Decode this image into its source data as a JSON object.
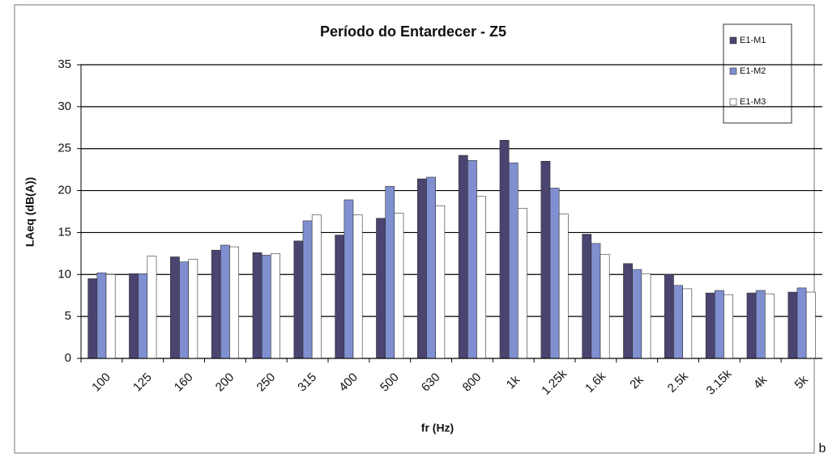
{
  "chart_data": {
    "type": "bar",
    "title": "Período do Entardecer - Z5",
    "y_label": "LAeq (dB(A))",
    "x_label": "fr (Hz)",
    "categories": [
      "100",
      "125",
      "160",
      "200",
      "250",
      "315",
      "400",
      "500",
      "630",
      "800",
      "1k",
      "1.25k",
      "1.6k",
      "2k",
      "2.5k",
      "3.15k",
      "4k",
      "5k"
    ],
    "series": [
      {
        "name": "E1-M1",
        "color": "#4a4470",
        "values": [
          9.5,
          10.1,
          12.1,
          12.9,
          12.6,
          14,
          14.7,
          16.7,
          21.4,
          24.2,
          26,
          23.5,
          14.8,
          11.3,
          10,
          7.8,
          7.8,
          7.9
        ]
      },
      {
        "name": "E1-M2",
        "color": "#7f8fd0",
        "values": [
          10.2,
          10.1,
          11.5,
          13.5,
          12.3,
          16.4,
          18.9,
          20.5,
          21.6,
          23.6,
          23.3,
          20.3,
          13.7,
          10.6,
          8.7,
          8.1,
          8.1,
          8.4
        ]
      },
      {
        "name": "E1-M3",
        "color": "#ffffff",
        "values": [
          10,
          12.2,
          11.8,
          13.3,
          12.5,
          17.1,
          17.1,
          17.3,
          18.2,
          19.3,
          17.9,
          17.2,
          12.4,
          10.1,
          8.3,
          7.6,
          7.7,
          7.9
        ]
      }
    ],
    "ylim": [
      0,
      35
    ],
    "yticks": [
      0,
      5,
      10,
      15,
      20,
      25,
      30,
      35
    ],
    "grid": true,
    "legend": "top-right",
    "corner_note": "b"
  }
}
